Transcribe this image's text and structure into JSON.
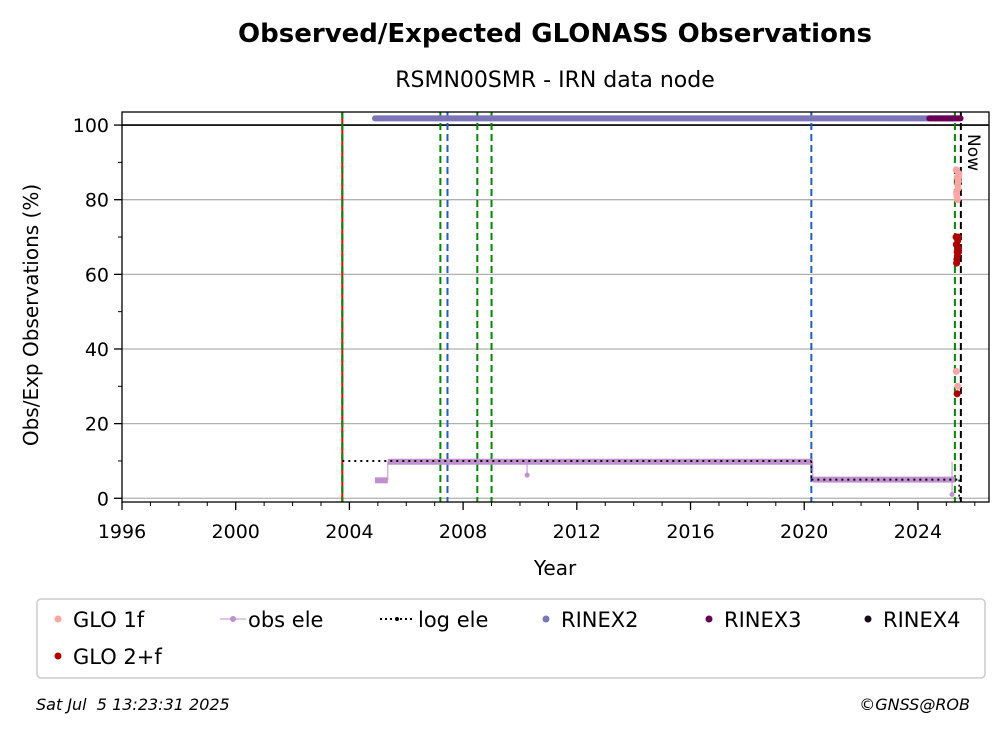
{
  "chart_data": {
    "type": "scatter",
    "title": "Observed/Expected GLONASS Observations",
    "subtitle": "RSMN00SMR - IRN data node",
    "xlabel": "Year",
    "ylabel": "Obs/Exp Observations (%)",
    "xlim": [
      1996.0,
      2026.5
    ],
    "ylim": [
      -1,
      103.5
    ],
    "x_ticks": [
      1996,
      2000,
      2004,
      2008,
      2012,
      2016,
      2020,
      2024
    ],
    "x_tick_labels": [
      "1996",
      "2000",
      "2004",
      "2008",
      "2012",
      "2016",
      "2020",
      "2024"
    ],
    "y_ticks": [
      0,
      20,
      40,
      60,
      80,
      100
    ],
    "y_tick_labels": [
      "0",
      "20",
      "40",
      "60",
      "80",
      "100"
    ],
    "grid": "horizontal",
    "reference_line": 100,
    "now_label": "Now",
    "now_x": 2025.51,
    "legend_position": "below",
    "legend": [
      {
        "label": "GLO 1f",
        "color": "#ffa5a5",
        "style": "dot"
      },
      {
        "label": "obs ele",
        "color": "#bf8fcf",
        "style": "line-dot"
      },
      {
        "label": "log ele",
        "color": "#000000",
        "style": "dotted-line"
      },
      {
        "label": "RINEX2",
        "color": "#7b74b8",
        "style": "dot"
      },
      {
        "label": "RINEX3",
        "color": "#6a0055",
        "style": "dot"
      },
      {
        "label": "RINEX4",
        "color": "#1b0a16",
        "style": "dot"
      },
      {
        "label": "GLO 2+f",
        "color": "#b00000",
        "style": "dot"
      }
    ],
    "vertical_lines": [
      {
        "x": 2003.75,
        "color": "#ff0000",
        "style": "solid"
      },
      {
        "x": 2003.75,
        "color": "#008800",
        "style": "dashed"
      },
      {
        "x": 2007.2,
        "color": "#008800",
        "style": "dashed"
      },
      {
        "x": 2007.45,
        "color": "#1f5fbf",
        "style": "dashed"
      },
      {
        "x": 2008.5,
        "color": "#008800",
        "style": "dashed"
      },
      {
        "x": 2009.0,
        "color": "#008800",
        "style": "dashed"
      },
      {
        "x": 2020.25,
        "color": "#1f5fbf",
        "style": "dashed"
      },
      {
        "x": 2025.3,
        "color": "#008800",
        "style": "dashed"
      },
      {
        "x": 2025.51,
        "color": "#000000",
        "style": "dashed"
      }
    ],
    "series": [
      {
        "name": "RINEX2",
        "color": "#7b74b8",
        "type": "band",
        "x": [
          2004.9,
          2025.3
        ],
        "y": 101.8
      },
      {
        "name": "RINEX3",
        "color": "#6a0055",
        "type": "band",
        "x": [
          2024.4,
          2025.5
        ],
        "y": 101.8
      },
      {
        "name": "obs ele",
        "color": "#bf8fcf",
        "type": "steps",
        "segments": [
          {
            "x": [
              2004.9,
              2005.35
            ],
            "y": 4.8
          },
          {
            "x": [
              2005.35,
              2020.3
            ],
            "y": 9.8
          },
          {
            "x": [
              2020.3,
              2025.3
            ],
            "y": 5.0
          }
        ],
        "points": [
          {
            "x": 2010.25,
            "y": 6.2
          },
          {
            "x": 2025.2,
            "y": 1.0
          }
        ]
      },
      {
        "name": "log ele",
        "color": "#000000",
        "type": "steps",
        "segments": [
          {
            "x": [
              2003.75,
              2020.25
            ],
            "y": 10.0
          },
          {
            "x": [
              2020.25,
              2025.45
            ],
            "y": 5.0
          },
          {
            "x": [
              2025.45,
              2025.5
            ],
            "y": 0.0
          }
        ]
      },
      {
        "name": "GLO 1f",
        "color": "#ffa5a5",
        "type": "scatter",
        "x": [
          2025.35,
          2025.38,
          2025.4,
          2025.42,
          2025.36,
          2025.44,
          2025.39,
          2025.41,
          2025.37,
          2025.43,
          2025.35,
          2025.4,
          2025.38
        ],
        "y": [
          88,
          86,
          84,
          85,
          82,
          87,
          80,
          83,
          81,
          86,
          34,
          30,
          28
        ]
      },
      {
        "name": "GLO 2+f",
        "color": "#b00000",
        "type": "scatter",
        "x": [
          2025.34,
          2025.36,
          2025.38,
          2025.4,
          2025.42,
          2025.37,
          2025.39,
          2025.41,
          2025.35,
          2025.43,
          2025.36,
          2025.38
        ],
        "y": [
          70,
          68,
          66,
          69,
          67,
          64,
          65,
          70,
          68,
          66,
          63,
          28
        ]
      }
    ]
  },
  "footer": {
    "timestamp": "Sat Jul  5 13:23:31 2025",
    "credit": "©GNSS@ROB"
  }
}
